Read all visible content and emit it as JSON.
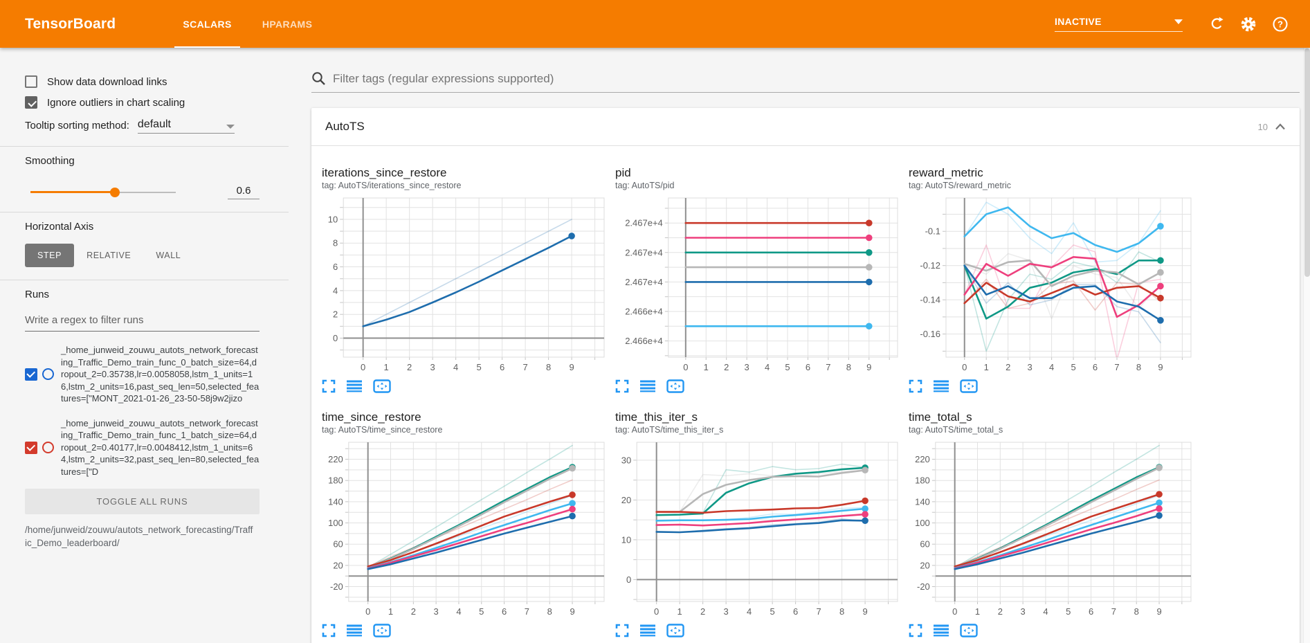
{
  "header": {
    "title": "TensorBoard",
    "tabs": [
      {
        "label": "SCALARS",
        "active": true
      },
      {
        "label": "HPARAMS",
        "active": false
      }
    ],
    "status": "INACTIVE",
    "icons": [
      "refresh-icon",
      "settings-gear-icon",
      "help-icon"
    ]
  },
  "colors": {
    "accent": "#f57c00",
    "icon_blue": "#2196f3",
    "run_colors": {
      "darkblue": "#1e6dad",
      "lightblue": "#3fb8ef",
      "teal": "#0f9886",
      "gray": "#b7b7b7",
      "pink": "#ee3f7d",
      "red": "#c8392a"
    }
  },
  "sidebar": {
    "checkboxes": [
      {
        "label": "Show data download links",
        "checked": false
      },
      {
        "label": "Ignore outliers in chart scaling",
        "checked": true
      }
    ],
    "tooltip_sorting": {
      "label": "Tooltip sorting method:",
      "value": "default"
    },
    "smoothing": {
      "label": "Smoothing",
      "value": "0.6",
      "percent": 58
    },
    "horizontal_axis": {
      "label": "Horizontal Axis",
      "options": [
        "STEP",
        "RELATIVE",
        "WALL"
      ],
      "selected": "STEP"
    },
    "runs": {
      "label": "Runs",
      "filter_placeholder": "Write a regex to filter runs",
      "items": [
        {
          "checked": true,
          "color": "#1967d2",
          "name": "_home_junweid_zouwu_autots_network_forecasting_Traffic_Demo_train_func_0_batch_size=64,dropout_2=0.35738,lr=0.0058058,lstm_1_units=16,lstm_2_units=16,past_seq_len=50,selected_features=[\"MONT_2021-01-26_23-50-58j9w2jizo"
        },
        {
          "checked": true,
          "color": "#d33b2c",
          "name": "_home_junweid_zouwu_autots_network_forecasting_Traffic_Demo_train_func_1_batch_size=64,dropout_2=0.40177,lr=0.0048412,lstm_1_units=64,lstm_2_units=32,past_seq_len=80,selected_features=[\"D"
        }
      ],
      "toggle_button": "TOGGLE ALL RUNS",
      "logdir": "/home/junweid/zouwu/autots_network_forecasting/Traffic_Demo_leaderboard/"
    }
  },
  "main": {
    "filter_placeholder": "Filter tags (regular expressions supported)",
    "card": {
      "title": "AutoTS",
      "count": "10"
    }
  },
  "chart_data": [
    {
      "type": "line",
      "title": "iterations_since_restore",
      "tag": "tag: AutoTS/iterations_since_restore",
      "x": [
        0,
        1,
        2,
        3,
        4,
        5,
        6,
        7,
        8,
        9
      ],
      "xlim": [
        -0.85,
        10.4
      ],
      "ylim": [
        -1.6,
        11.8
      ],
      "ygrid": 1,
      "yticks": [
        {
          "v": 0,
          "label": "0"
        },
        {
          "v": 2,
          "label": "2"
        },
        {
          "v": 4,
          "label": "4"
        },
        {
          "v": 6,
          "label": "6"
        },
        {
          "v": 8,
          "label": "8"
        },
        {
          "v": 10,
          "label": "10"
        }
      ],
      "series": [
        {
          "color": "darkblue",
          "style": "raw",
          "values": [
            1,
            2,
            3,
            4,
            5,
            6,
            7,
            8,
            9,
            10
          ]
        },
        {
          "color": "darkblue",
          "style": "smoothed",
          "values": [
            1,
            1.55,
            2.2,
            3.0,
            3.85,
            4.75,
            5.7,
            6.65,
            7.6,
            8.6
          ]
        }
      ]
    },
    {
      "type": "line",
      "title": "pid",
      "tag": "tag: AutoTS/pid",
      "x": [
        0,
        1,
        2,
        3,
        4,
        5,
        6,
        7,
        8,
        9
      ],
      "xlim": [
        -0.85,
        10.4
      ],
      "ylim": [
        24660.9,
        24671.7
      ],
      "ygrid": 1,
      "yticks": [
        {
          "v": 24670,
          "label": "2.467e+4"
        },
        {
          "v": 24668,
          "label": "2.467e+4"
        },
        {
          "v": 24666,
          "label": "2.467e+4"
        },
        {
          "v": 24664,
          "label": "2.466e+4"
        },
        {
          "v": 24662,
          "label": "2.466e+4"
        }
      ],
      "series": [
        {
          "color": "red",
          "style": "smoothed",
          "const": 24670
        },
        {
          "color": "pink",
          "style": "smoothed",
          "const": 24669
        },
        {
          "color": "teal",
          "style": "smoothed",
          "const": 24668
        },
        {
          "color": "gray",
          "style": "smoothed",
          "const": 24667
        },
        {
          "color": "darkblue",
          "style": "smoothed",
          "const": 24666
        },
        {
          "color": "lightblue",
          "style": "smoothed",
          "const": 24663
        }
      ]
    },
    {
      "type": "line",
      "title": "reward_metric",
      "tag": "tag: AutoTS/reward_metric",
      "x": [
        0,
        1,
        2,
        3,
        4,
        5,
        6,
        7,
        8,
        9
      ],
      "xlim": [
        -0.85,
        10.4
      ],
      "ylim": [
        -0.1735,
        -0.0805
      ],
      "ygrid": 0.01,
      "yticks": [
        {
          "v": -0.1,
          "label": "-0.1"
        },
        {
          "v": -0.12,
          "label": "-0.12"
        },
        {
          "v": -0.14,
          "label": "-0.14"
        },
        {
          "v": -0.16,
          "label": "-0.16"
        }
      ],
      "series": [
        {
          "color": "lightblue",
          "style": "raw",
          "values": [
            -0.103,
            -0.083,
            -0.09,
            -0.104,
            -0.113,
            -0.095,
            -0.118,
            -0.117,
            -0.107,
            -0.088
          ]
        },
        {
          "color": "teal",
          "style": "raw",
          "values": [
            -0.12,
            -0.17,
            -0.14,
            -0.125,
            -0.128,
            -0.118,
            -0.121,
            -0.13,
            -0.112,
            -0.118
          ]
        },
        {
          "color": "gray",
          "style": "raw",
          "values": [
            -0.12,
            -0.125,
            -0.113,
            -0.117,
            -0.151,
            -0.12,
            -0.125,
            -0.127,
            -0.145,
            -0.131
          ]
        },
        {
          "color": "pink",
          "style": "raw",
          "values": [
            -0.137,
            -0.108,
            -0.145,
            -0.145,
            -0.121,
            -0.108,
            -0.112,
            -0.175,
            -0.13,
            -0.128
          ]
        },
        {
          "color": "red",
          "style": "raw",
          "values": [
            -0.142,
            -0.128,
            -0.145,
            -0.142,
            -0.131,
            -0.129,
            -0.146,
            -0.13,
            -0.131,
            -0.141
          ]
        },
        {
          "color": "darkblue",
          "style": "raw",
          "values": [
            -0.12,
            -0.142,
            -0.13,
            -0.143,
            -0.14,
            -0.131,
            -0.131,
            -0.144,
            -0.147,
            -0.165
          ]
        },
        {
          "color": "lightblue",
          "style": "smoothed",
          "values": [
            -0.103,
            -0.09,
            -0.086,
            -0.097,
            -0.104,
            -0.101,
            -0.108,
            -0.112,
            -0.107,
            -0.097
          ]
        },
        {
          "color": "teal",
          "style": "smoothed",
          "values": [
            -0.12,
            -0.151,
            -0.144,
            -0.133,
            -0.13,
            -0.124,
            -0.122,
            -0.125,
            -0.117,
            -0.117
          ]
        },
        {
          "color": "gray",
          "style": "smoothed",
          "values": [
            -0.119,
            -0.123,
            -0.118,
            -0.117,
            -0.132,
            -0.126,
            -0.123,
            -0.124,
            -0.131,
            -0.124
          ]
        },
        {
          "color": "pink",
          "style": "smoothed",
          "values": [
            -0.137,
            -0.119,
            -0.126,
            -0.119,
            -0.121,
            -0.115,
            -0.116,
            -0.15,
            -0.143,
            -0.132
          ]
        },
        {
          "color": "red",
          "style": "smoothed",
          "values": [
            -0.142,
            -0.13,
            -0.138,
            -0.141,
            -0.136,
            -0.131,
            -0.137,
            -0.133,
            -0.132,
            -0.139
          ]
        },
        {
          "color": "darkblue",
          "style": "smoothed",
          "values": [
            -0.12,
            -0.137,
            -0.132,
            -0.139,
            -0.139,
            -0.133,
            -0.132,
            -0.141,
            -0.144,
            -0.152
          ]
        }
      ]
    },
    {
      "type": "line",
      "title": "time_since_restore",
      "tag": "tag: AutoTS/time_since_restore",
      "x": [
        0,
        1,
        2,
        3,
        4,
        5,
        6,
        7,
        8,
        9
      ],
      "xlim": [
        -0.85,
        10.4
      ],
      "ylim": [
        -48,
        252
      ],
      "ygrid": 20,
      "yticks": [
        {
          "v": -20,
          "label": "-20"
        },
        {
          "v": 20,
          "label": "20"
        },
        {
          "v": 60,
          "label": "60"
        },
        {
          "v": 100,
          "label": "100"
        },
        {
          "v": 140,
          "label": "140"
        },
        {
          "v": 180,
          "label": "180"
        },
        {
          "v": 220,
          "label": "220"
        }
      ],
      "series": [
        {
          "color": "teal",
          "style": "raw",
          "values": [
            16,
            41,
            66,
            92,
            118,
            144,
            169,
            195,
            220,
            246
          ]
        },
        {
          "color": "red",
          "style": "raw",
          "values": [
            18,
            36,
            54,
            72,
            90,
            108,
            126,
            144,
            163,
            181
          ]
        },
        {
          "color": "lightblue",
          "style": "raw",
          "values": [
            15,
            30,
            45,
            60,
            75,
            90,
            105,
            121,
            136,
            152
          ]
        },
        {
          "color": "teal",
          "style": "smoothed",
          "values": [
            16,
            33,
            52,
            74,
            96,
            119,
            142,
            164,
            186,
            205
          ]
        },
        {
          "color": "gray",
          "style": "smoothed",
          "values": [
            16,
            32,
            51,
            72,
            94,
            116,
            139,
            161,
            183,
            203
          ]
        },
        {
          "color": "red",
          "style": "smoothed",
          "values": [
            18,
            30,
            45,
            61,
            78,
            95,
            112,
            126,
            140,
            153
          ]
        },
        {
          "color": "lightblue",
          "style": "smoothed",
          "values": [
            15,
            26,
            39,
            53,
            67,
            82,
            96,
            110,
            124,
            137
          ]
        },
        {
          "color": "pink",
          "style": "smoothed",
          "values": [
            14,
            25,
            37,
            49,
            62,
            75,
            88,
            100,
            113,
            126
          ]
        },
        {
          "color": "darkblue",
          "style": "smoothed",
          "values": [
            13,
            22,
            33,
            44,
            56,
            68,
            80,
            91,
            102,
            113
          ]
        }
      ]
    },
    {
      "type": "line",
      "title": "time_this_iter_s",
      "tag": "tag: AutoTS/time_this_iter_s",
      "x": [
        0,
        1,
        2,
        3,
        4,
        5,
        6,
        7,
        8,
        9
      ],
      "xlim": [
        -0.85,
        10.4
      ],
      "ylim": [
        -5.5,
        34.5
      ],
      "ygrid": 5,
      "yticks": [
        {
          "v": 0,
          "label": "0"
        },
        {
          "v": 10,
          "label": "10"
        },
        {
          "v": 20,
          "label": "20"
        },
        {
          "v": 30,
          "label": "30"
        }
      ],
      "series": [
        {
          "color": "teal",
          "style": "raw",
          "values": [
            16.2,
            16.3,
            16.8,
            27.6,
            27.0,
            28.4,
            27.6,
            27.9,
            29.0,
            28.2
          ]
        },
        {
          "color": "gray",
          "style": "raw",
          "values": [
            17,
            17,
            26.4,
            26.1,
            26.6,
            26.1,
            26.0,
            26.6,
            27.1,
            27.5
          ]
        },
        {
          "color": "lightblue",
          "style": "raw",
          "values": [
            14.8,
            15,
            14.9,
            15.1,
            15.6,
            16.5,
            16.4,
            17.2,
            17.9,
            18.1
          ]
        },
        {
          "color": "darkblue",
          "style": "raw",
          "values": [
            12,
            11.8,
            12.4,
            12.8,
            13.1,
            13.8,
            14.1,
            14.4,
            15.3,
            14.6
          ]
        },
        {
          "color": "teal",
          "style": "smoothed",
          "values": [
            16.2,
            16.3,
            16.6,
            21.8,
            24.2,
            25.8,
            26.6,
            27.0,
            27.7,
            28.1
          ]
        },
        {
          "color": "gray",
          "style": "smoothed",
          "values": [
            17.0,
            17.0,
            21.5,
            23.8,
            25.0,
            25.8,
            26.0,
            25.9,
            26.8,
            27.5
          ]
        },
        {
          "color": "red",
          "style": "smoothed",
          "values": [
            17.0,
            17.0,
            16.8,
            17.2,
            17.4,
            17.6,
            17.9,
            18.0,
            18.8,
            19.8
          ]
        },
        {
          "color": "lightblue",
          "style": "smoothed",
          "values": [
            14.8,
            14.9,
            14.9,
            15.0,
            15.2,
            15.8,
            16.2,
            16.7,
            17.3,
            17.8
          ]
        },
        {
          "color": "pink",
          "style": "smoothed",
          "values": [
            13.7,
            13.8,
            13.6,
            13.9,
            14.2,
            14.7,
            15.1,
            15.5,
            16.0,
            16.4
          ]
        },
        {
          "color": "darkblue",
          "style": "smoothed",
          "values": [
            12.0,
            11.9,
            12.2,
            12.6,
            12.9,
            13.4,
            13.9,
            14.2,
            14.9,
            14.8
          ]
        }
      ]
    },
    {
      "type": "line",
      "title": "time_total_s",
      "tag": "tag: AutoTS/time_total_s",
      "x": [
        0,
        1,
        2,
        3,
        4,
        5,
        6,
        7,
        8,
        9
      ],
      "xlim": [
        -0.85,
        10.4
      ],
      "ylim": [
        -48,
        252
      ],
      "ygrid": 20,
      "yticks": [
        {
          "v": -20,
          "label": "-20"
        },
        {
          "v": 20,
          "label": "20"
        },
        {
          "v": 60,
          "label": "60"
        },
        {
          "v": 100,
          "label": "100"
        },
        {
          "v": 140,
          "label": "140"
        },
        {
          "v": 180,
          "label": "180"
        },
        {
          "v": 220,
          "label": "220"
        }
      ],
      "series": [
        {
          "color": "teal",
          "style": "raw",
          "values": [
            16,
            41,
            66,
            92,
            118,
            144,
            169,
            195,
            220,
            246
          ]
        },
        {
          "color": "red",
          "style": "raw",
          "values": [
            18,
            36,
            54,
            72,
            90,
            108,
            126,
            144,
            163,
            181
          ]
        },
        {
          "color": "lightblue",
          "style": "raw",
          "values": [
            15,
            30,
            45,
            60,
            75,
            90,
            105,
            121,
            136,
            152
          ]
        },
        {
          "color": "teal",
          "style": "smoothed",
          "values": [
            16,
            33,
            52,
            74,
            96,
            119,
            142,
            164,
            186,
            205
          ]
        },
        {
          "color": "gray",
          "style": "smoothed",
          "values": [
            16,
            32,
            51,
            72,
            94,
            116,
            139,
            161,
            183,
            204
          ]
        },
        {
          "color": "red",
          "style": "smoothed",
          "values": [
            18,
            30,
            45,
            61,
            78,
            95,
            112,
            126,
            140,
            154
          ]
        },
        {
          "color": "lightblue",
          "style": "smoothed",
          "values": [
            15,
            26,
            39,
            53,
            67,
            82,
            96,
            110,
            124,
            138
          ]
        },
        {
          "color": "pink",
          "style": "smoothed",
          "values": [
            14,
            25,
            37,
            49,
            62,
            75,
            88,
            100,
            113,
            127
          ]
        },
        {
          "color": "darkblue",
          "style": "smoothed",
          "values": [
            13,
            22,
            33,
            44,
            56,
            68,
            80,
            91,
            102,
            114
          ]
        }
      ]
    }
  ]
}
